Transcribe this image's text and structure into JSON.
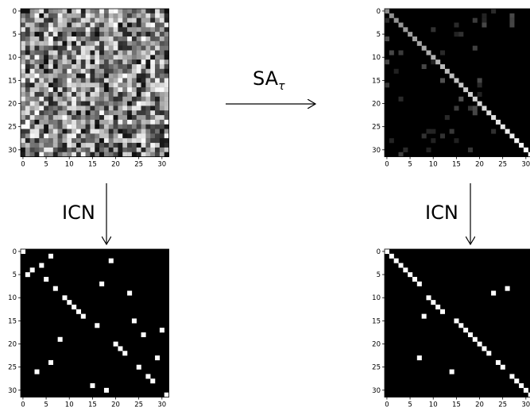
{
  "labels": {
    "top_arrow": "SA",
    "top_arrow_sub": "τ",
    "left_arrow": "ICN",
    "right_arrow": "ICN"
  },
  "axis": {
    "x_ticks": [
      "0",
      "5",
      "10",
      "15",
      "20",
      "25",
      "30"
    ],
    "y_ticks": [
      "0",
      "5",
      "10",
      "15",
      "20",
      "25",
      "30"
    ]
  },
  "matrices": {
    "size": 32,
    "bottom_left_ones": [
      [
        0,
        0
      ],
      [
        1,
        6
      ],
      [
        2,
        19
      ],
      [
        3,
        4
      ],
      [
        4,
        2
      ],
      [
        5,
        1
      ],
      [
        6,
        5
      ],
      [
        7,
        17
      ],
      [
        8,
        7
      ],
      [
        9,
        23
      ],
      [
        10,
        9
      ],
      [
        11,
        10
      ],
      [
        12,
        11
      ],
      [
        13,
        12
      ],
      [
        14,
        13
      ],
      [
        15,
        24
      ],
      [
        16,
        16
      ],
      [
        17,
        30
      ],
      [
        18,
        26
      ],
      [
        19,
        8
      ],
      [
        20,
        20
      ],
      [
        21,
        21
      ],
      [
        22,
        22
      ],
      [
        23,
        29
      ],
      [
        24,
        6
      ],
      [
        25,
        25
      ],
      [
        26,
        3
      ],
      [
        27,
        27
      ],
      [
        28,
        28
      ],
      [
        29,
        15
      ],
      [
        30,
        18
      ],
      [
        31,
        31
      ]
    ],
    "bottom_right_ones": [
      [
        0,
        0
      ],
      [
        1,
        1
      ],
      [
        2,
        2
      ],
      [
        3,
        3
      ],
      [
        4,
        4
      ],
      [
        5,
        5
      ],
      [
        6,
        6
      ],
      [
        7,
        7
      ],
      [
        8,
        26
      ],
      [
        9,
        23
      ],
      [
        10,
        9
      ],
      [
        11,
        10
      ],
      [
        12,
        11
      ],
      [
        13,
        12
      ],
      [
        14,
        8
      ],
      [
        15,
        15
      ],
      [
        16,
        16
      ],
      [
        17,
        17
      ],
      [
        18,
        18
      ],
      [
        19,
        19
      ],
      [
        20,
        20
      ],
      [
        21,
        21
      ],
      [
        22,
        22
      ],
      [
        23,
        7
      ],
      [
        24,
        24
      ],
      [
        25,
        25
      ],
      [
        26,
        14
      ],
      [
        27,
        27
      ],
      [
        28,
        28
      ],
      [
        29,
        29
      ],
      [
        30,
        30
      ],
      [
        31,
        31
      ]
    ]
  }
}
